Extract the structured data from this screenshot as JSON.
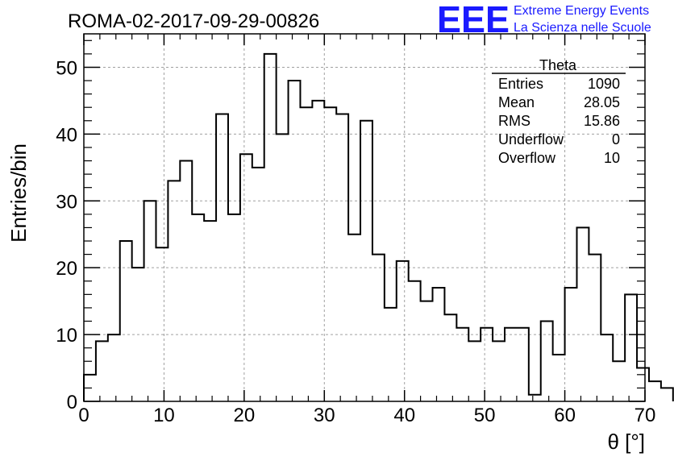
{
  "title": "ROMA-02-2017-09-29-00826",
  "logo": {
    "mark": "EEE",
    "line1": "Extreme Energy Events",
    "line2": "La Scienza nelle Scuole",
    "color": "#1a1aff"
  },
  "stats_box": {
    "title": "Theta",
    "rows": [
      {
        "label": "Entries",
        "value": "1090"
      },
      {
        "label": "Mean",
        "value": "28.05"
      },
      {
        "label": "RMS",
        "value": "15.86"
      },
      {
        "label": "Underflow",
        "value": "0"
      },
      {
        "label": "Overflow",
        "value": "10"
      }
    ]
  },
  "chart_data": {
    "type": "bar",
    "style": "step-histogram",
    "xlabel": "θ [°]",
    "ylabel": "Entries/bin",
    "xlim": [
      0,
      70
    ],
    "ylim": [
      0,
      55
    ],
    "bin_width": 1.5,
    "x_ticks": [
      0,
      10,
      20,
      30,
      40,
      50,
      60,
      70
    ],
    "y_ticks": [
      0,
      10,
      20,
      30,
      40,
      50
    ],
    "grid": true,
    "values": [
      4,
      9,
      10,
      24,
      20,
      30,
      23,
      33,
      36,
      28,
      27,
      43,
      28,
      37,
      35,
      52,
      40,
      48,
      44,
      45,
      44,
      43,
      25,
      42,
      22,
      14,
      21,
      18,
      15,
      17,
      13,
      11,
      9,
      11,
      9,
      11,
      11,
      1,
      12,
      7,
      17,
      26,
      22,
      10,
      6,
      16,
      5,
      3,
      2
    ]
  }
}
